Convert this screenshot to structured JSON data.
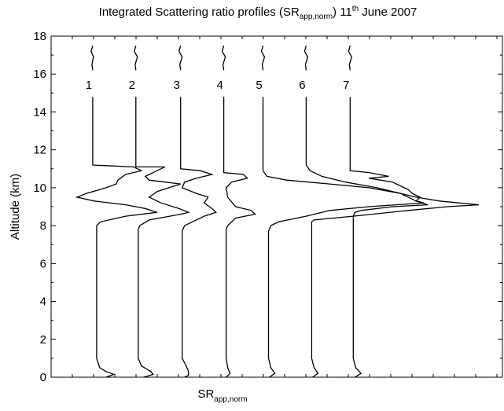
{
  "chart_data": {
    "type": "line",
    "title": [
      "Integrated Scattering ratio profiles (SR",
      "app,norm",
      ") 11",
      "th",
      " June 2007"
    ],
    "x_label": [
      "SR",
      "app,norm"
    ],
    "y_label": "Altitude (km)",
    "xlim": [
      0,
      575
    ],
    "ylim": [
      0,
      18
    ],
    "yticks": [
      0,
      2,
      4,
      6,
      8,
      10,
      12,
      14,
      16,
      18
    ],
    "series": [
      {
        "name": "1",
        "color": "#000000",
        "x": [
          53,
          51,
          54,
          52,
          53,
          null,
          53,
          53,
          105,
          115,
          95,
          85,
          83,
          70,
          45,
          33,
          55,
          95,
          120,
          135,
          95,
          63,
          58,
          58,
          62,
          70,
          80,
          70
        ],
        "y": [
          17.5,
          17.2,
          16.9,
          16.5,
          16.2,
          null,
          14.8,
          11.2,
          11.1,
          10.9,
          10.7,
          10.4,
          10.2,
          10.0,
          9.7,
          9.5,
          9.3,
          9.1,
          8.9,
          8.7,
          8.5,
          8.2,
          8.0,
          1.0,
          0.5,
          0.3,
          0.15,
          0
        ]
      },
      {
        "name": "2",
        "color": "#000000",
        "x": [
          108,
          106,
          110,
          107,
          108,
          null,
          108,
          108,
          145,
          135,
          120,
          125,
          165,
          150,
          135,
          125,
          140,
          163,
          175,
          165,
          125,
          113,
          111,
          111,
          115,
          127,
          130,
          118
        ],
        "y": [
          17.5,
          17.2,
          16.9,
          16.5,
          16.2,
          null,
          14.8,
          11.1,
          11.1,
          10.9,
          10.6,
          10.4,
          10.2,
          10.0,
          9.8,
          9.5,
          9.2,
          8.9,
          8.7,
          8.6,
          8.3,
          8.0,
          7.8,
          1.0,
          0.6,
          0.3,
          0.15,
          0
        ]
      },
      {
        "name": "3",
        "color": "#000000",
        "x": [
          165,
          163,
          167,
          164,
          165,
          null,
          165,
          165,
          190,
          205,
          185,
          170,
          167,
          185,
          200,
          195,
          205,
          210,
          195,
          170,
          167,
          167,
          172,
          175,
          175,
          170
        ],
        "y": [
          17.5,
          17.2,
          16.9,
          16.5,
          16.2,
          null,
          14.8,
          11.0,
          10.9,
          10.7,
          10.5,
          10.3,
          10.0,
          9.7,
          9.5,
          9.2,
          8.9,
          8.7,
          8.5,
          8.0,
          7.7,
          1.0,
          0.6,
          0.3,
          0.1,
          0
        ]
      },
      {
        "name": "4",
        "color": "#000000",
        "x": [
          220,
          218,
          222,
          219,
          220,
          null,
          220,
          220,
          245,
          250,
          230,
          223,
          225,
          235,
          255,
          260,
          235,
          225,
          223,
          223,
          225,
          228,
          223
        ],
        "y": [
          17.5,
          17.2,
          16.9,
          16.5,
          16.2,
          null,
          14.8,
          10.8,
          10.7,
          10.5,
          10.3,
          10.0,
          9.5,
          9.0,
          8.8,
          8.6,
          8.4,
          8.0,
          7.8,
          1.0,
          0.5,
          0.2,
          0
        ]
      },
      {
        "name": "5",
        "color": "#000000",
        "x": [
          270,
          268,
          272,
          269,
          270,
          null,
          270,
          270,
          275,
          300,
          355,
          405,
          445,
          455,
          465,
          475,
          405,
          355,
          325,
          290,
          280,
          277,
          277,
          280,
          285,
          278
        ],
        "y": [
          17.5,
          17.2,
          16.9,
          16.5,
          16.2,
          null,
          14.8,
          10.9,
          10.6,
          10.4,
          10.2,
          10.0,
          9.7,
          9.5,
          9.3,
          9.2,
          9.0,
          8.8,
          8.5,
          8.2,
          8.0,
          7.7,
          1.0,
          0.5,
          0.2,
          0
        ]
      },
      {
        "name": "6",
        "color": "#000000",
        "x": [
          325,
          323,
          327,
          324,
          325,
          null,
          325,
          325,
          330,
          345,
          375,
          415,
          445,
          465,
          495,
          545,
          505,
          455,
          385,
          335,
          332,
          332,
          335,
          340,
          333
        ],
        "y": [
          17.5,
          17.2,
          16.9,
          16.5,
          16.2,
          null,
          14.8,
          11.2,
          10.9,
          10.6,
          10.3,
          10.0,
          9.7,
          9.5,
          9.3,
          9.1,
          9.0,
          8.8,
          8.5,
          8.3,
          8.2,
          1.0,
          0.5,
          0.2,
          0
        ]
      },
      {
        "name": "7",
        "color": "#000000",
        "x": [
          381,
          379,
          383,
          380,
          381,
          null,
          381,
          381,
          405,
          430,
          405,
          435,
          445,
          455,
          460,
          470,
          465,
          480,
          435,
          395,
          387,
          385,
          385,
          388,
          395,
          387
        ],
        "y": [
          17.5,
          17.2,
          16.9,
          16.5,
          16.2,
          null,
          14.8,
          10.9,
          10.8,
          10.6,
          10.5,
          10.3,
          10.1,
          9.9,
          9.7,
          9.5,
          9.3,
          9.1,
          9.0,
          8.8,
          8.7,
          8.5,
          1.0,
          0.5,
          0.2,
          0
        ]
      }
    ]
  }
}
